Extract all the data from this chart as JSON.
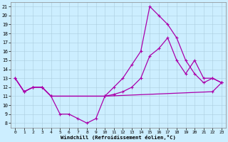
{
  "xlabel": "Windchill (Refroidissement éolien,°C)",
  "bg_color": "#cceeff",
  "line_color": "#aa00aa",
  "grid_color": "#aaccdd",
  "xlim": [
    -0.5,
    23.5
  ],
  "ylim": [
    7.5,
    21.5
  ],
  "yticks": [
    8,
    9,
    10,
    11,
    12,
    13,
    14,
    15,
    16,
    17,
    18,
    19,
    20,
    21
  ],
  "xticks": [
    0,
    1,
    2,
    3,
    4,
    5,
    6,
    7,
    8,
    9,
    10,
    11,
    12,
    13,
    14,
    15,
    16,
    17,
    18,
    19,
    20,
    21,
    22,
    23
  ],
  "line1_x": [
    0,
    1,
    2,
    3,
    4,
    5,
    6,
    7,
    8,
    9,
    10,
    22,
    23
  ],
  "line1_y": [
    13,
    11.5,
    12,
    12,
    11,
    9,
    9,
    8.5,
    8,
    8.5,
    11,
    11.5,
    12.5
  ],
  "line2_x": [
    0,
    1,
    2,
    3,
    4,
    10,
    11,
    12,
    13,
    14,
    15,
    16,
    17,
    18,
    19,
    20,
    21,
    22,
    23
  ],
  "line2_y": [
    13,
    11.5,
    12,
    12,
    11,
    11,
    11.2,
    11.5,
    12,
    13,
    15.5,
    16.3,
    17.5,
    15,
    13.5,
    15,
    13,
    13,
    12.5
  ],
  "line3_x": [
    0,
    1,
    2,
    3,
    4,
    10,
    11,
    12,
    13,
    14,
    15,
    16,
    17,
    18,
    19,
    20,
    21,
    22,
    23
  ],
  "line3_y": [
    13,
    11.5,
    12,
    12,
    11,
    11,
    12,
    13,
    14.5,
    16,
    21,
    20,
    19,
    17.5,
    15,
    13.5,
    12.5,
    13,
    12.5
  ]
}
